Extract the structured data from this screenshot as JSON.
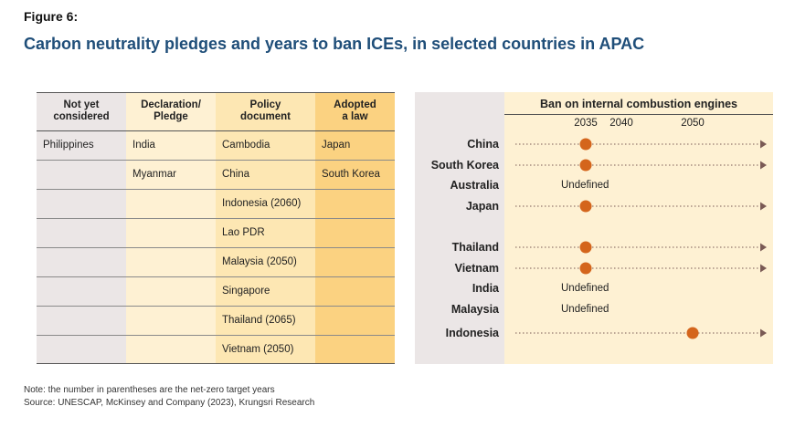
{
  "figure_label": "Figure 6:",
  "title": "Carbon neutrality pledges and years to ban ICEs, in selected countries in APAC",
  "table": {
    "headers": [
      "Not yet\nconsidered",
      "Declaration/\nPledge",
      "Policy\ndocument",
      "Adopted\na law"
    ],
    "rows": [
      [
        "Philippines",
        "India",
        "Cambodia",
        "Japan"
      ],
      [
        "",
        "Myanmar",
        "China",
        "South Korea"
      ],
      [
        "",
        "",
        "Indonesia (2060)",
        ""
      ],
      [
        "",
        "",
        "Lao PDR",
        ""
      ],
      [
        "",
        "",
        "Malaysia (2050)",
        ""
      ],
      [
        "",
        "",
        "Singapore",
        ""
      ],
      [
        "",
        "",
        "Thailand (2065)",
        ""
      ],
      [
        "",
        "",
        "Vietnam (2050)",
        ""
      ]
    ]
  },
  "chart_data": {
    "type": "scatter",
    "title": "Ban on internal combustion engines",
    "xticks": [
      "2035",
      "2040",
      "2050"
    ],
    "undefined_label": "Undefined",
    "countries": [
      {
        "name": "China",
        "year": 2035
      },
      {
        "name": "South Korea",
        "year": 2035
      },
      {
        "name": "Australia",
        "year": null
      },
      {
        "name": "Japan",
        "year": 2035
      },
      {
        "name": "Thailand",
        "year": 2035
      },
      {
        "name": "Vietnam",
        "year": 2035
      },
      {
        "name": "India",
        "year": null
      },
      {
        "name": "Malaysia",
        "year": null
      },
      {
        "name": "Indonesia",
        "year": 2050
      }
    ],
    "colors": {
      "marker": "#d4651c",
      "line": "#7a5a55"
    }
  },
  "note": "Note: the number in parentheses are the net-zero target years",
  "source": "Source: UNESCAP, McKinsey and Company (2023), Krungsri Research"
}
